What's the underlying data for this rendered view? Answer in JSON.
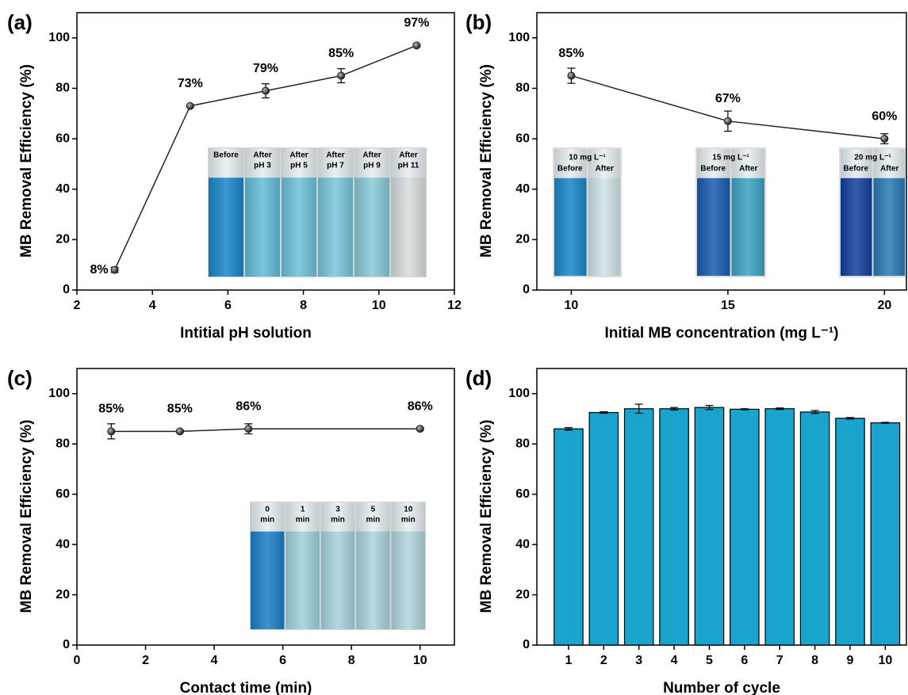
{
  "chart_data": [
    {
      "type": "line",
      "panel_label": "(a)",
      "x_label": "Intitial pH solution",
      "y_label": "MB Removal Efficiency (%)",
      "xlim": [
        2,
        12
      ],
      "ylim": [
        0,
        110
      ],
      "xticks": [
        2,
        4,
        6,
        8,
        10,
        12
      ],
      "yticks": [
        0,
        20,
        40,
        60,
        80,
        100
      ],
      "x": [
        3,
        5,
        7,
        9,
        11
      ],
      "values": [
        8,
        73,
        79,
        85,
        97
      ],
      "errors": [
        1,
        0.5,
        2.8,
        2.8,
        0.5
      ],
      "value_labels": [
        "8%",
        "73%",
        "79%",
        "85%",
        "97%"
      ],
      "color": "#222222",
      "inset": {
        "labels": [
          [
            "Before"
          ],
          [
            "After",
            "pH 3"
          ],
          [
            "After",
            "pH 5"
          ],
          [
            "After",
            "pH 7"
          ],
          [
            "After",
            "pH 9"
          ],
          [
            "After",
            "pH 11"
          ]
        ]
      }
    },
    {
      "type": "line",
      "panel_label": "(b)",
      "x_label": "Initial MB concentration (mg L⁻¹)",
      "y_label": "MB Removal Efficiency (%)",
      "xlim": [
        8.9,
        20.7
      ],
      "ylim": [
        0,
        110
      ],
      "xticks": [
        10,
        15,
        20
      ],
      "yticks": [
        0,
        20,
        40,
        60,
        80,
        100
      ],
      "x": [
        10,
        15,
        20
      ],
      "values": [
        85,
        67,
        60
      ],
      "errors": [
        3,
        4,
        2
      ],
      "value_labels": [
        "85%",
        "67%",
        "60%"
      ],
      "color": "#222222",
      "inset": {
        "labels": [
          [
            "10 mg L⁻¹",
            "Before",
            "After"
          ],
          [
            "15 mg L⁻¹",
            "Before",
            "After"
          ],
          [
            "20 mg L⁻¹",
            "Before",
            "After"
          ]
        ]
      }
    },
    {
      "type": "line",
      "panel_label": "(c)",
      "x_label": "Contact time (min)",
      "y_label": "MB Removal Efficiency (%)",
      "xlim": [
        0,
        11
      ],
      "ylim": [
        0,
        110
      ],
      "xticks": [
        0,
        2,
        4,
        6,
        8,
        10
      ],
      "yticks": [
        0,
        20,
        40,
        60,
        80,
        100
      ],
      "x": [
        1,
        3,
        5,
        10
      ],
      "values": [
        85,
        85,
        86,
        86
      ],
      "errors": [
        3,
        0.5,
        2,
        0.5
      ],
      "value_labels": [
        "85%",
        "85%",
        "86%",
        "86%"
      ],
      "color": "#222222",
      "inset": {
        "labels": [
          [
            "0",
            "min"
          ],
          [
            "1",
            "min"
          ],
          [
            "3",
            "min"
          ],
          [
            "5",
            "min"
          ],
          [
            "10",
            "min"
          ]
        ]
      }
    },
    {
      "type": "bar",
      "panel_label": "(d)",
      "x_label": "Number of cycle",
      "y_label": "MB Removal Efficiency (%)",
      "xlim": [
        0.1,
        10.6
      ],
      "ylim": [
        0,
        110
      ],
      "xticks": [
        1,
        2,
        3,
        4,
        5,
        6,
        7,
        8,
        9,
        10
      ],
      "yticks": [
        0,
        20,
        40,
        60,
        80,
        100
      ],
      "x": [
        1,
        2,
        3,
        4,
        5,
        6,
        7,
        8,
        9,
        10
      ],
      "values": [
        86,
        92.5,
        94,
        94,
        94.5,
        93.8,
        94,
        92.7,
        90.2,
        88.4
      ],
      "errors": [
        0.5,
        0.3,
        1.8,
        0.5,
        0.8,
        0.2,
        0.3,
        0.6,
        0.3,
        0.2
      ],
      "color": "#1aa3cc"
    }
  ]
}
